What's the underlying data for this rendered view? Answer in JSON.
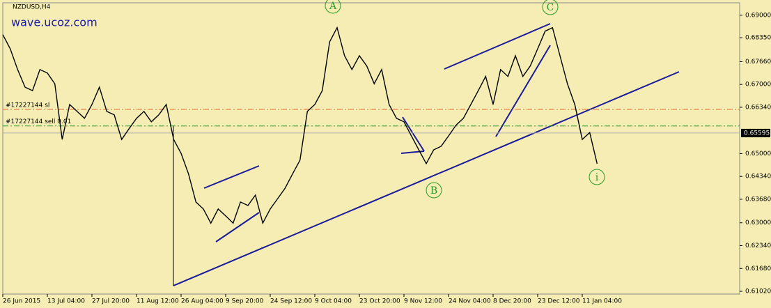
{
  "chart_data": {
    "type": "line",
    "title": "NZDUSD,H4",
    "watermark": "wave.ucoz.com",
    "color": "#000000",
    "categories": [
      "26 Jun 2015",
      null,
      null,
      null,
      null,
      null,
      "13 Jul 04:00",
      null,
      null,
      null,
      null,
      null,
      "27 Jul 20:00",
      null,
      null,
      null,
      null,
      null,
      "11 Aug 12:00",
      null,
      null,
      null,
      null,
      null,
      "26 Aug 04:00",
      null,
      null,
      null,
      null,
      null,
      "9 Sep 20:00",
      null,
      null,
      null,
      null,
      null,
      "24 Sep 12:00",
      null,
      null,
      null,
      null,
      null,
      "9 Oct 04:00",
      null,
      null,
      null,
      null,
      null,
      "23 Oct 20:00",
      null,
      null,
      null,
      null,
      null,
      "9 Nov 12:00",
      null,
      null,
      null,
      null,
      null,
      "24 Nov 04:00",
      null,
      null,
      null,
      null,
      null,
      "8 Dec 20:00",
      null,
      null,
      null,
      null,
      null,
      "23 Dec 12:00",
      null,
      null,
      null,
      null,
      null,
      "11 Jan 04:00",
      null,
      null
    ],
    "values": [
      0.6844,
      0.6803,
      0.6743,
      0.6692,
      0.6682,
      0.6743,
      0.6733,
      0.6702,
      0.6541,
      0.6642,
      0.6622,
      0.6602,
      0.6642,
      0.6692,
      0.6622,
      0.6612,
      0.6541,
      0.6572,
      0.6602,
      0.6622,
      0.6592,
      0.6612,
      0.6642,
      0.6541,
      0.6501,
      0.6441,
      0.636,
      0.634,
      0.6299,
      0.634,
      0.632,
      0.6299,
      0.636,
      0.635,
      0.638,
      0.6299,
      0.634,
      0.637,
      0.64,
      0.6441,
      0.6481,
      0.6622,
      0.6642,
      0.6682,
      0.6823,
      0.6864,
      0.6783,
      0.6743,
      0.6783,
      0.6753,
      0.6702,
      0.6743,
      0.6642,
      0.6602,
      0.6592,
      0.6551,
      0.6511,
      0.6471,
      0.6511,
      0.6521,
      0.6551,
      0.6582,
      0.6602,
      0.6642,
      0.6682,
      0.6723,
      0.6642,
      0.6743,
      0.6723,
      0.6783,
      0.6723,
      0.6753,
      0.6803,
      0.6854,
      0.6864,
      0.6783,
      0.6702,
      0.6642,
      0.6541,
      0.6561,
      0.6471
    ],
    "ylim": [
      0.6094,
      0.6936
    ],
    "yticks": [
      {
        "value": 0.69,
        "label": "0.69000"
      },
      {
        "value": 0.6835,
        "label": "0.68350"
      },
      {
        "value": 0.6766,
        "label": "0.67660"
      },
      {
        "value": 0.67,
        "label": "0.67000"
      },
      {
        "value": 0.6634,
        "label": "0.66340"
      },
      {
        "value": 0.65,
        "label": "0.65000"
      },
      {
        "value": 0.6434,
        "label": "0.64340"
      },
      {
        "value": 0.6368,
        "label": "0.63680"
      },
      {
        "value": 0.63,
        "label": "0.63000"
      },
      {
        "value": 0.6234,
        "label": "0.62340"
      },
      {
        "value": 0.6168,
        "label": "0.61680"
      },
      {
        "value": 0.6102,
        "label": "0.61020"
      }
    ],
    "current_price": 0.65595,
    "levels": [
      {
        "label": "#17227144 sl",
        "value": 0.6628,
        "color": "#e0602a"
      },
      {
        "label": "#17227144 sell 0.01",
        "value": 0.658,
        "color": "#2e9a2e"
      }
    ],
    "annotations": [
      "A",
      "B",
      "C",
      "i"
    ]
  }
}
